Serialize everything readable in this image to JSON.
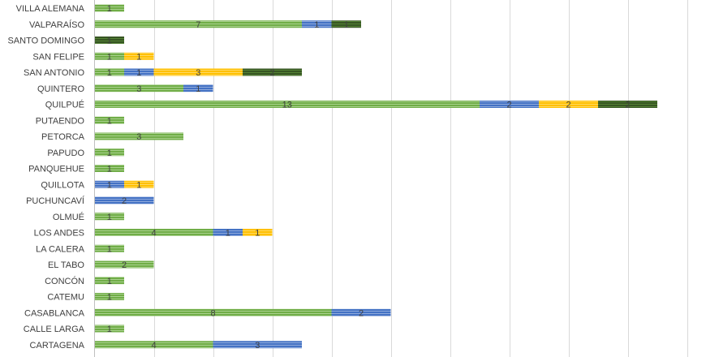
{
  "chart_data": {
    "type": "bar",
    "orientation": "horizontal",
    "stacked": true,
    "title": "",
    "xlabel": "",
    "ylabel": "",
    "xlim": [
      0,
      20
    ],
    "grid": true,
    "legend": "none",
    "categories": [
      "VILLA ALEMANA",
      "VALPARAÍSO",
      "SANTO DOMINGO",
      "SAN FELIPE",
      "SAN ANTONIO",
      "QUINTERO",
      "QUILPUÉ",
      "PUTAENDO",
      "PETORCA",
      "PAPUDO",
      "PANQUEHUE",
      "QUILLOTA",
      "PUCHUNCAVÍ",
      "OLMUÉ",
      "LOS ANDES",
      "LA CALERA",
      "EL TABO",
      "CONCÓN",
      "CATEMU",
      "CASABLANCA",
      "CALLE LARGA",
      "CARTAGENA"
    ],
    "series": [
      {
        "color": "#70ad47",
        "values": [
          1,
          7,
          0,
          1,
          1,
          3,
          13,
          1,
          3,
          1,
          1,
          0,
          0,
          1,
          4,
          1,
          2,
          1,
          1,
          8,
          1,
          4
        ]
      },
      {
        "color": "#4472c4",
        "values": [
          0,
          1,
          0,
          0,
          1,
          1,
          2,
          0,
          0,
          0,
          0,
          1,
          2,
          0,
          1,
          0,
          0,
          0,
          0,
          2,
          0,
          3
        ]
      },
      {
        "color": "#ffc000",
        "values": [
          0,
          0,
          0,
          1,
          3,
          0,
          2,
          0,
          0,
          0,
          0,
          1,
          0,
          0,
          1,
          0,
          0,
          0,
          0,
          0,
          0,
          0
        ]
      },
      {
        "color": "#375623",
        "values": [
          0,
          1,
          1,
          0,
          2,
          0,
          2,
          0,
          0,
          0,
          0,
          0,
          0,
          0,
          0,
          0,
          0,
          0,
          0,
          0,
          0,
          0
        ]
      }
    ],
    "colors": {
      "gridline": "#d9d9d9",
      "axis": "#bfbfbf",
      "label_text": "#404040"
    }
  }
}
